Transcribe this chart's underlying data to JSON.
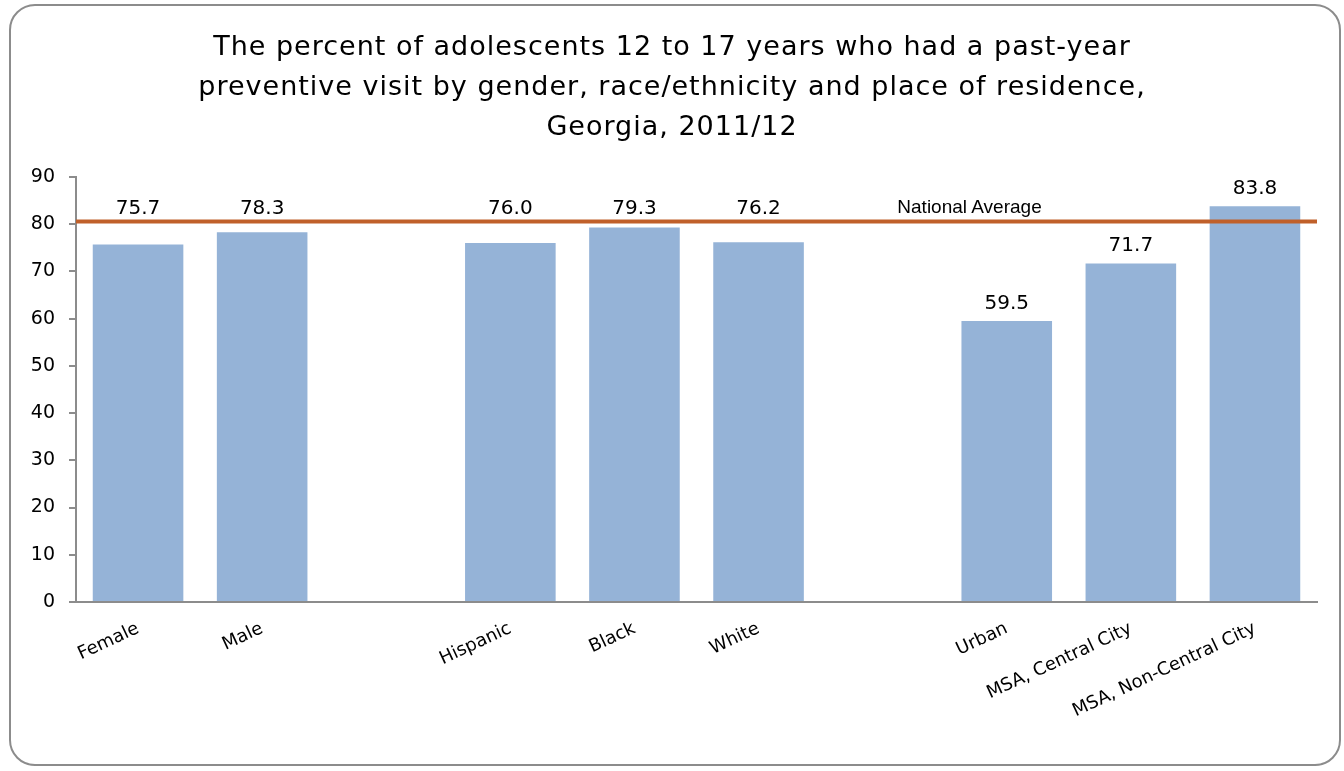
{
  "chart_data": {
    "type": "bar",
    "title": "The percent of adolescents 12 to 17 years who had a past-year preventive visit by gender, race/ethnicity and place of residence, Georgia, 2011/12",
    "categories": [
      "Female",
      "Male",
      null,
      "Hispanic",
      "Black",
      "White",
      null,
      "Urban",
      "MSA, Central City",
      "MSA, Non-Central City"
    ],
    "values": [
      75.7,
      78.3,
      null,
      76.0,
      79.3,
      76.2,
      null,
      59.5,
      71.7,
      83.8
    ],
    "value_labels": [
      "75.7",
      "78.3",
      null,
      "76.0",
      "79.3",
      "76.2",
      null,
      "59.5",
      "71.7",
      "83.8"
    ],
    "color": "#95b3d7",
    "ylim": [
      0,
      90
    ],
    "yticks": [
      0,
      10,
      20,
      30,
      40,
      50,
      60,
      70,
      80,
      90
    ],
    "ref_lines": [
      {
        "axis": "y",
        "value": 80.6,
        "label": "National Average",
        "color": "#c0602a"
      }
    ]
  }
}
